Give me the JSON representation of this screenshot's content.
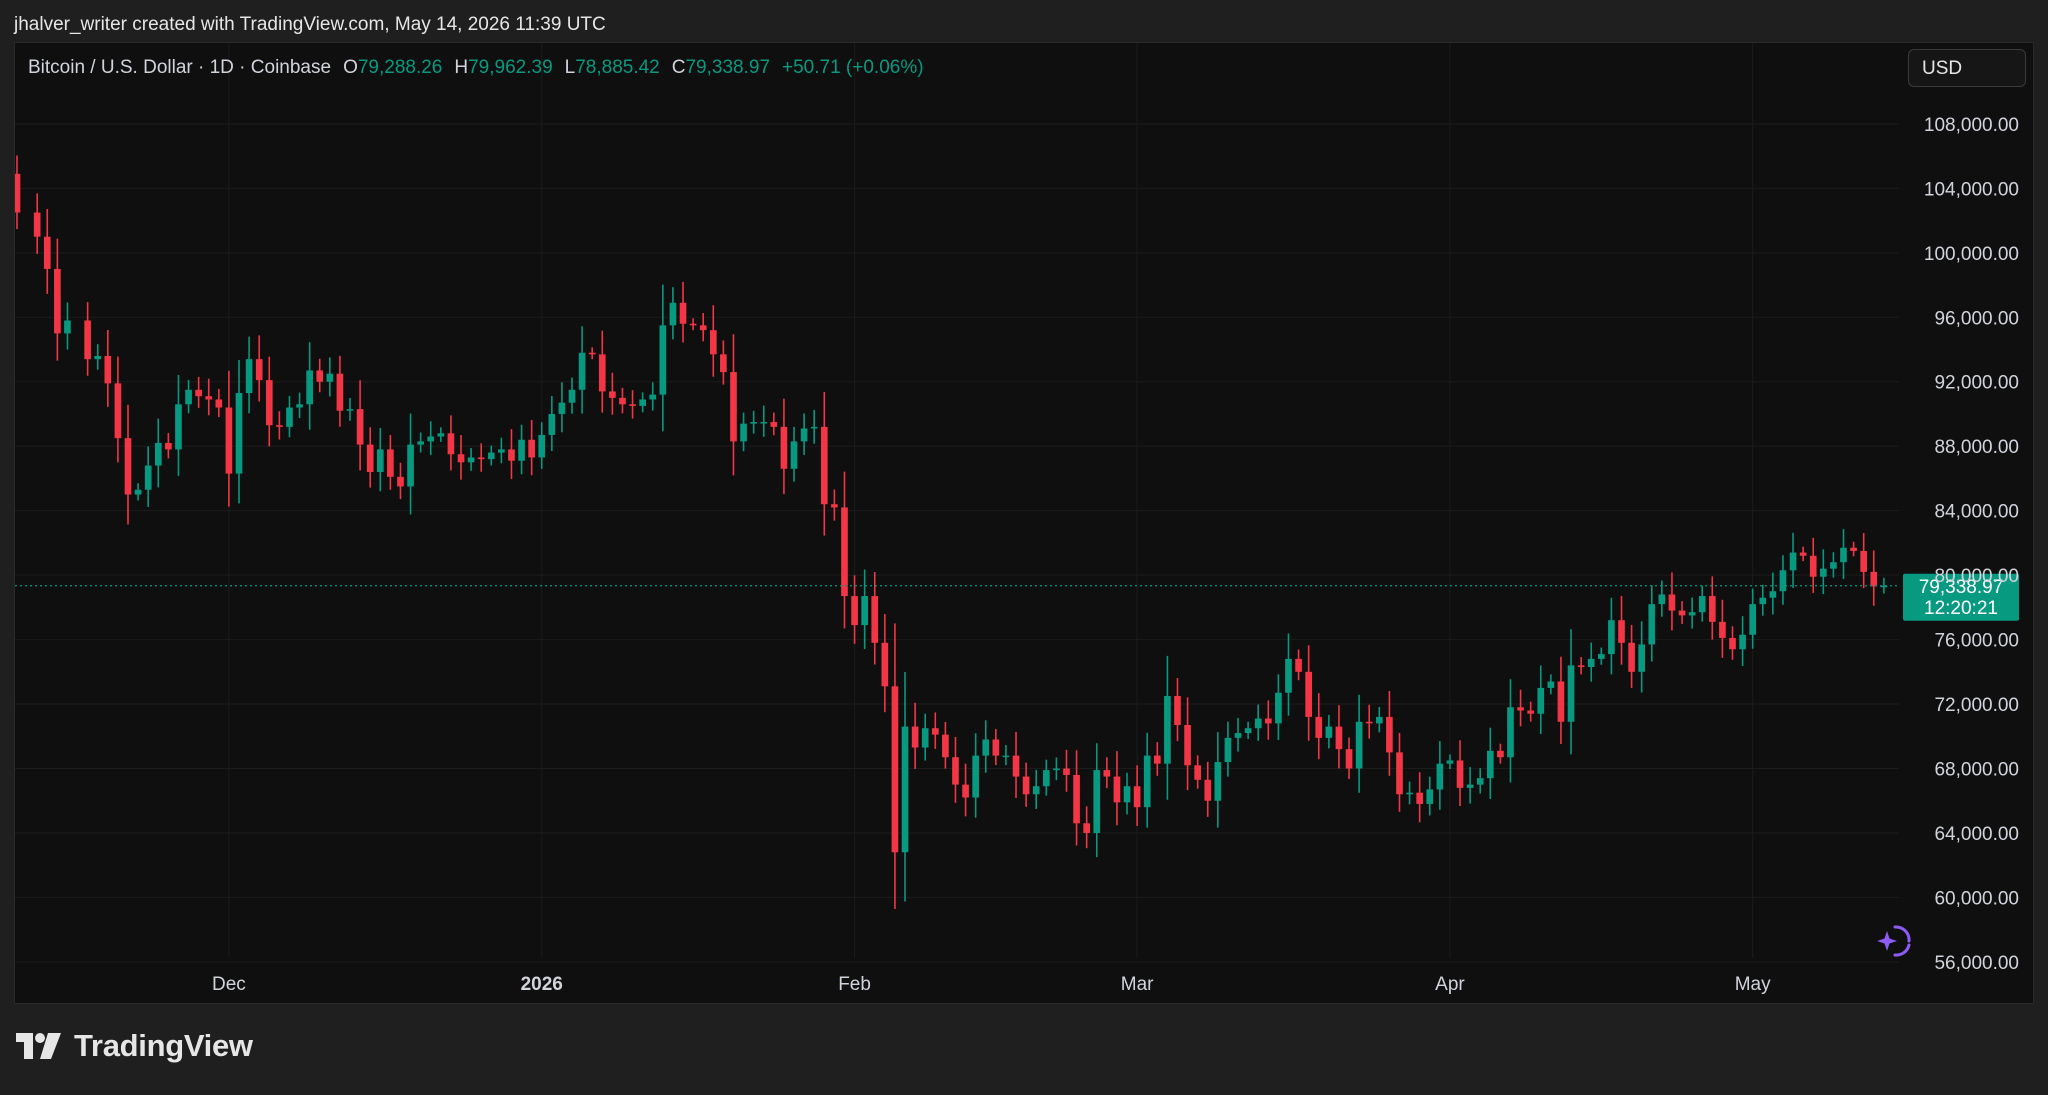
{
  "snapshot_caption": "jhalver_writer created with TradingView.com, May 14, 2026 11:39 UTC",
  "legend": {
    "symbol": "Bitcoin / U.S. Dollar · 1D · Coinbase",
    "open_label": "O",
    "open": "79,288.26",
    "high_label": "H",
    "high": "79,962.39",
    "low_label": "L",
    "low": "78,885.42",
    "close_label": "C",
    "close": "79,338.97",
    "change": "+50.71 (+0.06%)"
  },
  "currency_button": "USD",
  "last_price": {
    "price": "79,338.97",
    "countdown": "12:20:21",
    "value": 79338.97
  },
  "brand": "TradingView",
  "colors": {
    "up": "#089981",
    "down": "#f23645",
    "price_tag": "#089981",
    "background": "#0f0f0f",
    "grid": "#1c1c1c",
    "text": "#d1d4dc",
    "assist": "#8d5cf6"
  },
  "icons": {
    "logo": "tradingview-logo-icon",
    "assist": "ai-assist-sparkle-icon"
  },
  "chart_data": {
    "type": "candlestick",
    "y_ticks": [
      {
        "value": 108000,
        "label": "108,000.00"
      },
      {
        "value": 104000,
        "label": "104,000.00"
      },
      {
        "value": 100000,
        "label": "100,000.00"
      },
      {
        "value": 96000,
        "label": "96,000.00"
      },
      {
        "value": 92000,
        "label": "92,000.00"
      },
      {
        "value": 88000,
        "label": "88,000.00"
      },
      {
        "value": 84000,
        "label": "84,000.00"
      },
      {
        "value": 80000,
        "label": "80,000.00"
      },
      {
        "value": 76000,
        "label": "76,000.00"
      },
      {
        "value": 72000,
        "label": "72,000.00"
      },
      {
        "value": 68000,
        "label": "68,000.00"
      },
      {
        "value": 64000,
        "label": "64,000.00"
      },
      {
        "value": 60000,
        "label": "60,000.00"
      },
      {
        "value": 56000,
        "label": "56,000.00"
      }
    ],
    "x_ticks": [
      {
        "date": "2025-12-01",
        "label": "Dec",
        "bold": false
      },
      {
        "date": "2026-01-01",
        "label": "2026",
        "bold": true
      },
      {
        "date": "2026-02-01",
        "label": "Feb",
        "bold": false
      },
      {
        "date": "2026-03-01",
        "label": "Mar",
        "bold": false
      },
      {
        "date": "2026-04-01",
        "label": "Apr",
        "bold": false
      },
      {
        "date": "2026-05-01",
        "label": "May",
        "bold": false
      }
    ],
    "x_range": [
      "2025-11-10",
      "2026-05-15"
    ],
    "y_range": [
      55000,
      108800
    ],
    "grid": true,
    "closes": [
      {
        "date": "2025-11-10",
        "close": 102500
      },
      {
        "date": "2025-11-12",
        "close": 101000
      },
      {
        "date": "2025-11-13",
        "close": 99000
      },
      {
        "date": "2025-11-14",
        "close": 95000
      },
      {
        "date": "2025-11-15",
        "close": 95800
      },
      {
        "date": "2025-11-17",
        "close": 93400
      },
      {
        "date": "2025-11-18",
        "close": 93600
      },
      {
        "date": "2025-11-19",
        "close": 91900
      },
      {
        "date": "2025-11-20",
        "close": 88500
      },
      {
        "date": "2025-11-21",
        "close": 85000
      },
      {
        "date": "2025-11-22",
        "close": 85300
      },
      {
        "date": "2025-11-23",
        "close": 86800
      },
      {
        "date": "2025-11-24",
        "close": 88200
      },
      {
        "date": "2025-11-25",
        "close": 87800
      },
      {
        "date": "2025-11-26",
        "close": 90600
      },
      {
        "date": "2025-11-27",
        "close": 91500
      },
      {
        "date": "2025-11-28",
        "close": 91100
      },
      {
        "date": "2025-11-29",
        "close": 90900
      },
      {
        "date": "2025-11-30",
        "close": 90400
      },
      {
        "date": "2025-12-01",
        "close": 86300
      },
      {
        "date": "2025-12-02",
        "close": 91300
      },
      {
        "date": "2025-12-03",
        "close": 93400
      },
      {
        "date": "2025-12-04",
        "close": 92100
      },
      {
        "date": "2025-12-05",
        "close": 89300
      },
      {
        "date": "2025-12-06",
        "close": 89200
      },
      {
        "date": "2025-12-07",
        "close": 90400
      },
      {
        "date": "2025-12-08",
        "close": 90600
      },
      {
        "date": "2025-12-09",
        "close": 92700
      },
      {
        "date": "2025-12-10",
        "close": 92000
      },
      {
        "date": "2025-12-11",
        "close": 92500
      },
      {
        "date": "2025-12-12",
        "close": 90200
      },
      {
        "date": "2025-12-13",
        "close": 90300
      },
      {
        "date": "2025-12-14",
        "close": 88100
      },
      {
        "date": "2025-12-15",
        "close": 86400
      },
      {
        "date": "2025-12-16",
        "close": 87800
      },
      {
        "date": "2025-12-17",
        "close": 86100
      },
      {
        "date": "2025-12-18",
        "close": 85500
      },
      {
        "date": "2025-12-19",
        "close": 88100
      },
      {
        "date": "2025-12-20",
        "close": 88300
      },
      {
        "date": "2025-12-21",
        "close": 88600
      },
      {
        "date": "2025-12-22",
        "close": 88800
      },
      {
        "date": "2025-12-23",
        "close": 87500
      },
      {
        "date": "2025-12-24",
        "close": 87000
      },
      {
        "date": "2025-12-25",
        "close": 87300
      },
      {
        "date": "2025-12-26",
        "close": 87200
      },
      {
        "date": "2025-12-27",
        "close": 87600
      },
      {
        "date": "2025-12-28",
        "close": 87800
      },
      {
        "date": "2025-12-29",
        "close": 87100
      },
      {
        "date": "2025-12-30",
        "close": 88400
      },
      {
        "date": "2025-12-31",
        "close": 87300
      },
      {
        "date": "2026-01-01",
        "close": 88700
      },
      {
        "date": "2026-01-02",
        "close": 90000
      },
      {
        "date": "2026-01-03",
        "close": 90700
      },
      {
        "date": "2026-01-04",
        "close": 91500
      },
      {
        "date": "2026-01-05",
        "close": 93800
      },
      {
        "date": "2026-01-06",
        "close": 93700
      },
      {
        "date": "2026-01-07",
        "close": 91400
      },
      {
        "date": "2026-01-08",
        "close": 91000
      },
      {
        "date": "2026-01-09",
        "close": 90600
      },
      {
        "date": "2026-01-10",
        "close": 90500
      },
      {
        "date": "2026-01-11",
        "close": 90900
      },
      {
        "date": "2026-01-12",
        "close": 91200
      },
      {
        "date": "2026-01-13",
        "close": 95500
      },
      {
        "date": "2026-01-14",
        "close": 96900
      },
      {
        "date": "2026-01-15",
        "close": 95600
      },
      {
        "date": "2026-01-16",
        "close": 95500
      },
      {
        "date": "2026-01-17",
        "close": 95200
      },
      {
        "date": "2026-01-18",
        "close": 93700
      },
      {
        "date": "2026-01-19",
        "close": 92600
      },
      {
        "date": "2026-01-20",
        "close": 88300
      },
      {
        "date": "2026-01-21",
        "close": 89400
      },
      {
        "date": "2026-01-22",
        "close": 89500
      },
      {
        "date": "2026-01-23",
        "close": 89500
      },
      {
        "date": "2026-01-24",
        "close": 89200
      },
      {
        "date": "2026-01-25",
        "close": 86600
      },
      {
        "date": "2026-01-26",
        "close": 88300
      },
      {
        "date": "2026-01-27",
        "close": 89100
      },
      {
        "date": "2026-01-28",
        "close": 89200
      },
      {
        "date": "2026-01-29",
        "close": 84400
      },
      {
        "date": "2026-01-30",
        "close": 84200
      },
      {
        "date": "2026-01-31",
        "close": 78700
      },
      {
        "date": "2026-02-01",
        "close": 76900
      },
      {
        "date": "2026-02-02",
        "close": 78700
      },
      {
        "date": "2026-02-03",
        "close": 75800
      },
      {
        "date": "2026-02-04",
        "close": 73100
      },
      {
        "date": "2026-02-05",
        "close": 62800
      },
      {
        "date": "2026-02-06",
        "close": 70600
      },
      {
        "date": "2026-02-07",
        "close": 69300
      },
      {
        "date": "2026-02-08",
        "close": 70500
      },
      {
        "date": "2026-02-09",
        "close": 70100
      },
      {
        "date": "2026-02-10",
        "close": 68700
      },
      {
        "date": "2026-02-11",
        "close": 67000
      },
      {
        "date": "2026-02-12",
        "close": 66200
      },
      {
        "date": "2026-02-13",
        "close": 68800
      },
      {
        "date": "2026-02-14",
        "close": 69800
      },
      {
        "date": "2026-02-15",
        "close": 68800
      },
      {
        "date": "2026-02-16",
        "close": 68800
      },
      {
        "date": "2026-02-17",
        "close": 67500
      },
      {
        "date": "2026-02-18",
        "close": 66400
      },
      {
        "date": "2026-02-19",
        "close": 66900
      },
      {
        "date": "2026-02-20",
        "close": 67900
      },
      {
        "date": "2026-02-21",
        "close": 68000
      },
      {
        "date": "2026-02-22",
        "close": 67600
      },
      {
        "date": "2026-02-23",
        "close": 64600
      },
      {
        "date": "2026-02-24",
        "close": 64000
      },
      {
        "date": "2026-02-25",
        "close": 67900
      },
      {
        "date": "2026-02-26",
        "close": 67500
      },
      {
        "date": "2026-02-27",
        "close": 65900
      },
      {
        "date": "2026-02-28",
        "close": 66900
      },
      {
        "date": "2026-03-01",
        "close": 65600
      },
      {
        "date": "2026-03-02",
        "close": 68800
      },
      {
        "date": "2026-03-03",
        "close": 68300
      },
      {
        "date": "2026-03-04",
        "close": 72500
      },
      {
        "date": "2026-03-05",
        "close": 70700
      },
      {
        "date": "2026-03-06",
        "close": 68200
      },
      {
        "date": "2026-03-07",
        "close": 67300
      },
      {
        "date": "2026-03-08",
        "close": 66000
      },
      {
        "date": "2026-03-09",
        "close": 68400
      },
      {
        "date": "2026-03-10",
        "close": 69900
      },
      {
        "date": "2026-03-11",
        "close": 70200
      },
      {
        "date": "2026-03-12",
        "close": 70500
      },
      {
        "date": "2026-03-13",
        "close": 71100
      },
      {
        "date": "2026-03-14",
        "close": 70800
      },
      {
        "date": "2026-03-15",
        "close": 72700
      },
      {
        "date": "2026-03-16",
        "close": 74800
      },
      {
        "date": "2026-03-17",
        "close": 74000
      },
      {
        "date": "2026-03-18",
        "close": 71200
      },
      {
        "date": "2026-03-19",
        "close": 69900
      },
      {
        "date": "2026-03-20",
        "close": 70600
      },
      {
        "date": "2026-03-21",
        "close": 69200
      },
      {
        "date": "2026-03-22",
        "close": 68000
      },
      {
        "date": "2026-03-23",
        "close": 70900
      },
      {
        "date": "2026-03-24",
        "close": 70800
      },
      {
        "date": "2026-03-25",
        "close": 71200
      },
      {
        "date": "2026-03-26",
        "close": 69000
      },
      {
        "date": "2026-03-27",
        "close": 66400
      },
      {
        "date": "2026-03-28",
        "close": 66500
      },
      {
        "date": "2026-03-29",
        "close": 65800
      },
      {
        "date": "2026-03-30",
        "close": 66700
      },
      {
        "date": "2026-03-31",
        "close": 68300
      },
      {
        "date": "2026-04-01",
        "close": 68500
      },
      {
        "date": "2026-04-02",
        "close": 66800
      },
      {
        "date": "2026-04-03",
        "close": 67000
      },
      {
        "date": "2026-04-04",
        "close": 67400
      },
      {
        "date": "2026-04-05",
        "close": 69100
      },
      {
        "date": "2026-04-06",
        "close": 68700
      },
      {
        "date": "2026-04-07",
        "close": 71800
      },
      {
        "date": "2026-04-08",
        "close": 71600
      },
      {
        "date": "2026-04-09",
        "close": 71400
      },
      {
        "date": "2026-04-10",
        "close": 73000
      },
      {
        "date": "2026-04-11",
        "close": 73400
      },
      {
        "date": "2026-04-12",
        "close": 70900
      },
      {
        "date": "2026-04-13",
        "close": 74400
      },
      {
        "date": "2026-04-14",
        "close": 74300
      },
      {
        "date": "2026-04-15",
        "close": 74800
      },
      {
        "date": "2026-04-16",
        "close": 75100
      },
      {
        "date": "2026-04-17",
        "close": 77200
      },
      {
        "date": "2026-04-18",
        "close": 75800
      },
      {
        "date": "2026-04-19",
        "close": 74000
      },
      {
        "date": "2026-04-20",
        "close": 75700
      },
      {
        "date": "2026-04-21",
        "close": 78200
      },
      {
        "date": "2026-04-22",
        "close": 78800
      },
      {
        "date": "2026-04-23",
        "close": 77800
      },
      {
        "date": "2026-04-24",
        "close": 77500
      },
      {
        "date": "2026-04-25",
        "close": 77700
      },
      {
        "date": "2026-04-26",
        "close": 78700
      },
      {
        "date": "2026-04-27",
        "close": 77100
      },
      {
        "date": "2026-04-28",
        "close": 76100
      },
      {
        "date": "2026-04-29",
        "close": 75400
      },
      {
        "date": "2026-04-30",
        "close": 76300
      },
      {
        "date": "2026-05-01",
        "close": 78200
      },
      {
        "date": "2026-05-02",
        "close": 78600
      },
      {
        "date": "2026-05-03",
        "close": 79000
      },
      {
        "date": "2026-05-04",
        "close": 80300
      },
      {
        "date": "2026-05-05",
        "close": 81400
      },
      {
        "date": "2026-05-06",
        "close": 81200
      },
      {
        "date": "2026-05-07",
        "close": 79900
      },
      {
        "date": "2026-05-08",
        "close": 80400
      },
      {
        "date": "2026-05-09",
        "close": 80800
      },
      {
        "date": "2026-05-10",
        "close": 81700
      },
      {
        "date": "2026-05-11",
        "close": 81500
      },
      {
        "date": "2026-05-12",
        "close": 80200
      },
      {
        "date": "2026-05-13",
        "close": 79300
      },
      {
        "date": "2026-05-14",
        "close": 79338.97
      }
    ]
  }
}
